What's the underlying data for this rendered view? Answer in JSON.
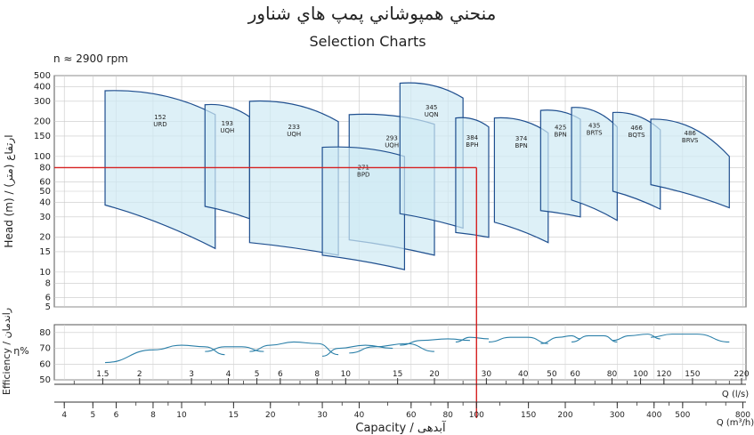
{
  "chart_data": {
    "type": "line",
    "title_fa": "منحني همپوشاني پمپ هاي شناور",
    "title": "Selection Charts",
    "speed_label": "n ≈ 2900 rpm",
    "head_axis": {
      "label": "Head (m) / (ارتفاع (متر",
      "scale": "log",
      "range": [
        5,
        500
      ],
      "ticks": [
        5,
        6,
        8,
        10,
        15,
        20,
        30,
        40,
        50,
        60,
        80,
        100,
        150,
        200,
        300,
        400,
        500
      ]
    },
    "efficiency_axis": {
      "label": "Efficiency / راندمان",
      "unit": "η%",
      "range": [
        50,
        85
      ],
      "ticks": [
        50,
        60,
        70,
        80
      ]
    },
    "flow_ls_axis": {
      "label": "Q (l/s)",
      "scale": "log",
      "ticks": [
        "1.5",
        "2",
        "3",
        "4",
        "5",
        "6",
        "8",
        "10",
        "15",
        "20",
        "30",
        "40",
        "50",
        "60",
        "80",
        "100",
        "120",
        "150",
        "220"
      ]
    },
    "flow_m3h_axis": {
      "label": "Q (m³/h)",
      "scale": "log",
      "ticks": [
        "4",
        "5",
        "6",
        "8",
        "10",
        "15",
        "20",
        "30",
        "40",
        "60",
        "80",
        "100",
        "150",
        "200",
        "300",
        "400",
        "500",
        "800"
      ]
    },
    "capacity_label": "Capacity / آبدهی",
    "grid": true,
    "selection_point": {
      "q_m3h": 100,
      "head_m": 80
    },
    "series": [
      {
        "name": "152",
        "sub": "URD",
        "q": [
          5.5,
          13
        ],
        "h_top": [
          370,
          230
        ],
        "h_bot": [
          38,
          16
        ]
      },
      {
        "name": "193",
        "sub": "UQH",
        "q": [
          12,
          17
        ],
        "h_top": [
          280,
          220
        ],
        "h_bot": [
          37,
          29
        ]
      },
      {
        "name": "233",
        "sub": "UQH",
        "q": [
          17,
          34
        ],
        "h_top": [
          300,
          200
        ],
        "h_bot": [
          18,
          14
        ]
      },
      {
        "name": "293",
        "sub": "UQH",
        "q": [
          37,
          72
        ],
        "h_top": [
          230,
          190
        ],
        "h_bot": [
          19,
          14
        ]
      },
      {
        "name": "271",
        "sub": "BPD",
        "q": [
          30,
          57
        ],
        "h_top": [
          120,
          100
        ],
        "h_bot": [
          14,
          10.5
        ]
      },
      {
        "name": "345",
        "sub": "UQN",
        "q": [
          55,
          90
        ],
        "h_top": [
          430,
          320
        ],
        "h_bot": [
          32,
          24
        ]
      },
      {
        "name": "384",
        "sub": "BPH",
        "q": [
          85,
          110
        ],
        "h_top": [
          215,
          180
        ],
        "h_bot": [
          22,
          20
        ]
      },
      {
        "name": "374",
        "sub": "BPN",
        "q": [
          115,
          175
        ],
        "h_top": [
          215,
          160
        ],
        "h_bot": [
          27,
          18
        ]
      },
      {
        "name": "425",
        "sub": "BPN",
        "q": [
          165,
          225
        ],
        "h_top": [
          250,
          210
        ],
        "h_bot": [
          34,
          30
        ]
      },
      {
        "name": "435",
        "sub": "BRTS",
        "q": [
          210,
          300
        ],
        "h_top": [
          265,
          180
        ],
        "h_bot": [
          42,
          28
        ]
      },
      {
        "name": "466",
        "sub": "BQTS",
        "q": [
          290,
          420
        ],
        "h_top": [
          240,
          170
        ],
        "h_bot": [
          50,
          35
        ]
      },
      {
        "name": "486",
        "sub": "BRVS",
        "q": [
          390,
          720
        ],
        "h_top": [
          210,
          100
        ],
        "h_bot": [
          57,
          36
        ]
      }
    ],
    "efficiency_curves": [
      {
        "q": [
          5.5,
          8,
          10,
          12,
          14
        ],
        "eta": [
          61,
          69,
          72,
          71,
          66
        ]
      },
      {
        "q": [
          12,
          14,
          16,
          19
        ],
        "eta": [
          68,
          71,
          71,
          68
        ]
      },
      {
        "q": [
          17,
          20,
          24,
          29,
          34
        ],
        "eta": [
          68,
          72,
          74,
          73,
          66
        ]
      },
      {
        "q": [
          30,
          34,
          42,
          52
        ],
        "eta": [
          65,
          70,
          72,
          70
        ]
      },
      {
        "q": [
          37,
          45,
          58,
          72
        ],
        "eta": [
          67,
          71,
          73,
          68
        ]
      },
      {
        "q": [
          55,
          65,
          80,
          95
        ],
        "eta": [
          72,
          75,
          76,
          75
        ]
      },
      {
        "q": [
          85,
          95,
          110
        ],
        "eta": [
          74,
          77,
          76
        ]
      },
      {
        "q": [
          110,
          130,
          150,
          175
        ],
        "eta": [
          74,
          77,
          77,
          73
        ]
      },
      {
        "q": [
          165,
          190,
          210,
          225
        ],
        "eta": [
          73,
          77,
          78,
          76
        ]
      },
      {
        "q": [
          210,
          240,
          270,
          300
        ],
        "eta": [
          74,
          78,
          78,
          74
        ]
      },
      {
        "q": [
          290,
          330,
          380,
          420
        ],
        "eta": [
          75,
          78,
          79,
          76
        ]
      },
      {
        "q": [
          390,
          460,
          560,
          720
        ],
        "eta": [
          77,
          79,
          79,
          74
        ]
      }
    ]
  }
}
